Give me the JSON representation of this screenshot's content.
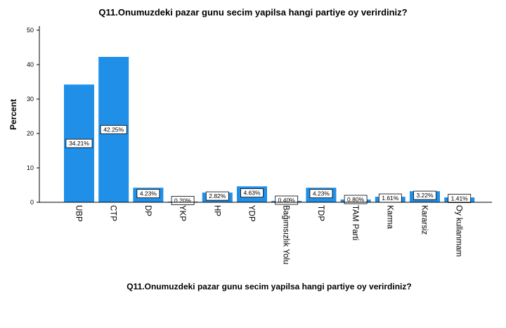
{
  "chart_data": {
    "type": "bar",
    "title": "Q11.Onumuzdeki pazar gunu secim yapilsa hangi partiye oy verirdiniz?",
    "xlabel": "Q11.Onumuzdeki pazar gunu secim yapilsa hangi partiye oy verirdiniz?",
    "ylabel": "Percent",
    "ylim": [
      0,
      50
    ],
    "yticks": [
      0,
      10,
      20,
      30,
      40,
      50
    ],
    "grid": false,
    "bar_color": "#1f8fe8",
    "categories": [
      "UBP",
      "CTP",
      "DP",
      "YKP",
      "HP",
      "YDP",
      "Bağımsızlık Yolu",
      "TDP",
      "TAM Parti",
      "Karma",
      "Kararsiz",
      "Oy kullanmam"
    ],
    "values": [
      34.21,
      42.25,
      4.23,
      0.2,
      2.82,
      4.63,
      0.4,
      4.23,
      0.8,
      1.61,
      3.22,
      1.41
    ],
    "data_labels": [
      "34.21%",
      "42.25%",
      "4.23%",
      "0.20%",
      "2.82%",
      "4.63%",
      "0.40%",
      "4.23%",
      "0.80%",
      "1.61%",
      "3.22%",
      "1.41%"
    ]
  }
}
